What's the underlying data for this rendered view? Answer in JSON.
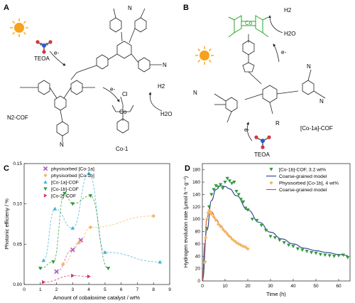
{
  "panels": {
    "A": {
      "letter": "A",
      "labels": [
        "TEOA",
        "N2-COF",
        "Co-1",
        "H2",
        "H2O",
        "e-",
        "e-",
        "Cl"
      ]
    },
    "B": {
      "letter": "B",
      "labels": [
        "H2",
        "H2O",
        "[Co-1a]-COF",
        "TEOA",
        "e-",
        "e-",
        "R"
      ]
    }
  },
  "colors": {
    "sun": "#f7a21b",
    "green_complex": "#2aa32a",
    "Co1a": "#3fb4d6",
    "Co1b": "#2e9a3c",
    "phys_Co1a": "#b05ab8",
    "phys_Co1b": "#f5b765",
    "Co2": "#d8327a",
    "model_blue": "#2b3d8c",
    "model_red": "#d8493b"
  },
  "chart_data": [
    {
      "panel": "C",
      "type": "scatter",
      "xlabel": "Amount of cobaloxime catalyst / wt%",
      "ylabel": "Photonic efficieny / %",
      "xlim": [
        0,
        9
      ],
      "ylim": [
        0,
        0.15
      ],
      "xticks": [
        "0",
        "1",
        "2",
        "3",
        "4",
        "5",
        "6",
        "7",
        "8",
        "9"
      ],
      "yticks": [
        "0.00",
        "0.05",
        "0.10",
        "0.15"
      ],
      "legend_position": "top-left",
      "series": [
        {
          "name": "physisorbed [Co-1a]",
          "marker": "x",
          "x": [
            2.0,
            3.0,
            3.5
          ],
          "y": [
            0.016,
            0.043,
            0.055
          ]
        },
        {
          "name": "physisorbed [Co-1b]",
          "marker": "diamond",
          "x": [
            2.4,
            3.4,
            4.1,
            8.0
          ],
          "y": [
            0.025,
            0.052,
            0.071,
            0.085
          ]
        },
        {
          "name": "[Co-1a]-COF",
          "marker": "triangle-up",
          "x": [
            1.2,
            1.9,
            3.0,
            4.0,
            5.0,
            8.4
          ],
          "y": [
            0.03,
            0.094,
            0.07,
            0.138,
            0.04,
            0.028
          ]
        },
        {
          "name": "[Co-1b]-COF",
          "marker": "triangle-down",
          "x": [
            1.0,
            1.8,
            2.5,
            3.0,
            4.1,
            5.2
          ],
          "y": [
            0.02,
            0.028,
            0.113,
            0.1,
            0.11,
            0.02
          ]
        },
        {
          "name": "[Co-2]-COF",
          "marker": "triangle-right",
          "x": [
            1.2,
            3.0,
            4.0
          ],
          "y": [
            0.003,
            0.011,
            0.01
          ]
        }
      ]
    },
    {
      "panel": "D",
      "type": "scatter",
      "xlabel": "Time (h)",
      "ylabel": "Hydrogen evolution rate (µmol h⁻¹ g⁻¹)",
      "xlim": [
        0,
        65
      ],
      "ylim": [
        0,
        190
      ],
      "xticks": [
        "0",
        "10",
        "20",
        "30",
        "40",
        "50",
        "60"
      ],
      "yticks": [
        "0",
        "20",
        "40",
        "60",
        "80",
        "100",
        "120",
        "140",
        "160",
        "180"
      ],
      "legend_position": "top-right",
      "series": [
        {
          "name": "[Co-1b]-COF, 3.2 wt%",
          "marker": "triangle-down",
          "x": [
            1,
            2,
            3,
            4,
            5,
            6,
            7,
            8,
            9,
            10,
            11,
            12,
            13,
            14,
            15,
            16,
            17,
            18,
            19,
            20,
            22,
            24,
            26,
            28,
            30,
            32,
            34,
            36,
            38,
            40,
            42,
            44,
            46,
            48,
            50,
            52,
            54,
            56,
            58,
            60,
            62,
            64
          ],
          "y": [
            30,
            85,
            120,
            140,
            148,
            154,
            152,
            156,
            150,
            160,
            166,
            162,
            158,
            160,
            145,
            140,
            132,
            128,
            118,
            115,
            100,
            98,
            90,
            82,
            72,
            70,
            66,
            62,
            58,
            56,
            52,
            50,
            48,
            46,
            45,
            43,
            42,
            41,
            40,
            41,
            42,
            38
          ]
        },
        {
          "name": "Physisorbed [Co-1b], 4 wt%",
          "marker": "diamond",
          "x": [
            1,
            1.5,
            2,
            2.5,
            3,
            3.5,
            4,
            5,
            6,
            7,
            8,
            9,
            10,
            11,
            12,
            13,
            14,
            15,
            16,
            17,
            18,
            19,
            20
          ],
          "y": [
            30,
            70,
            100,
            110,
            114,
            112,
            108,
            104,
            98,
            92,
            88,
            84,
            80,
            76,
            72,
            68,
            65,
            62,
            60,
            58,
            56,
            55,
            52
          ]
        },
        {
          "name": "Coarse-grained model",
          "type": "line",
          "x": [
            0,
            2,
            4,
            6,
            8,
            10,
            12,
            15,
            20,
            25,
            30,
            35,
            40,
            45,
            50,
            55,
            60,
            64
          ],
          "y": [
            0,
            82,
            130,
            148,
            154,
            153,
            149,
            138,
            115,
            95,
            79,
            68,
            60,
            53,
            49,
            46,
            43,
            41
          ]
        },
        {
          "name": "Coarse-grained model",
          "type": "line",
          "x": [
            0,
            1,
            2,
            3,
            4,
            6,
            8,
            10,
            12,
            14,
            16,
            18,
            20
          ],
          "y": [
            0,
            60,
            102,
            114,
            112,
            100,
            90,
            80,
            72,
            66,
            61,
            57,
            52
          ]
        }
      ]
    }
  ]
}
